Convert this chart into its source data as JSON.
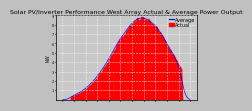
{
  "title": "Solar PV/Inverter Performance West Array Actual & Average Power Output",
  "title_fontsize": 4.5,
  "bg_color": "#c0c0c0",
  "plot_bg_color": "#c8c8c8",
  "bar_color": "#ff0000",
  "avg_line_color": "#0000ff",
  "grid_color": "#ffffff",
  "ylabel": "kW",
  "ylabel_fontsize": 3.5,
  "ymax": 9,
  "yticks": [
    1,
    2,
    3,
    4,
    5,
    6,
    7,
    8,
    9
  ],
  "num_points": 120,
  "legend_actual": "Actual",
  "legend_average": "Average",
  "legend_fontsize": 3.5
}
